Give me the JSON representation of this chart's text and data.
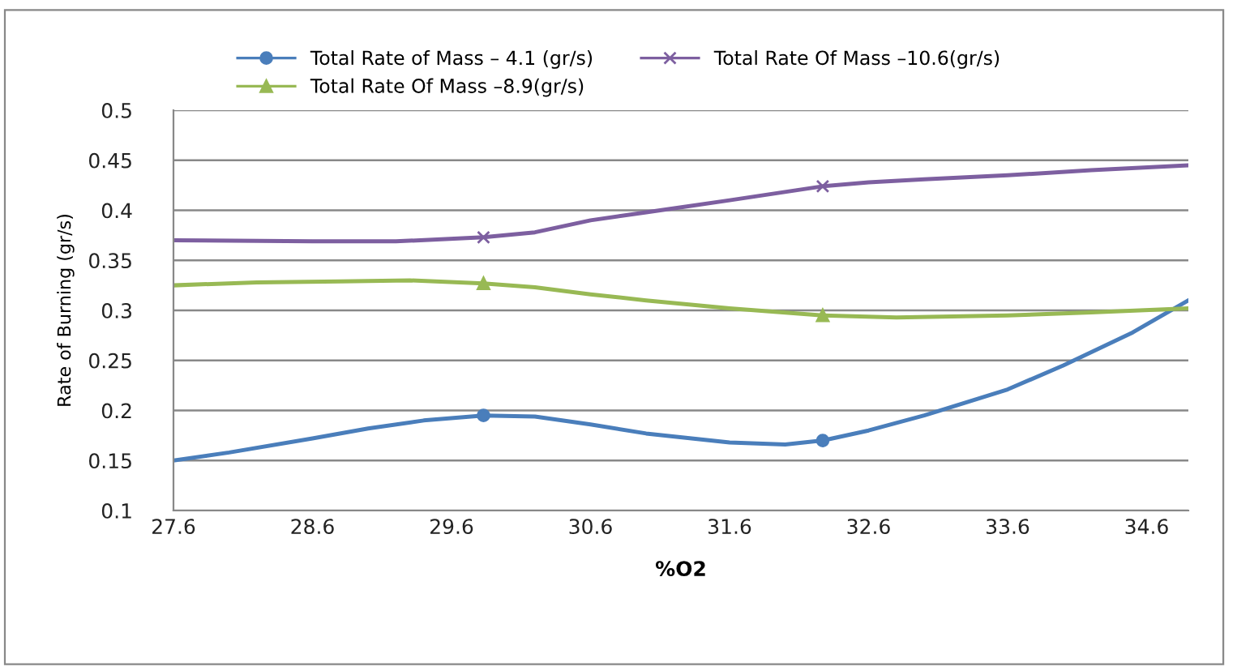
{
  "chart_data": {
    "type": "line",
    "xlabel": "%O2",
    "ylabel": "Rate of Burning (gr/s)",
    "xlim": [
      27.6,
      34.9
    ],
    "xticks": [
      27.6,
      28.6,
      29.6,
      30.6,
      31.6,
      32.6,
      33.6,
      34.6
    ],
    "ylim": [
      0.1,
      0.5
    ],
    "yticks": [
      0.1,
      0.15,
      0.2,
      0.25,
      0.3,
      0.35,
      0.4,
      0.45,
      0.5
    ],
    "grid": "y",
    "legend": "top",
    "line_style": "solid",
    "series": [
      {
        "name": "Total Rate of Mass – 4.1 (gr/s)",
        "color": "#4a7ebb",
        "x": [
          27.6,
          28.0,
          28.6,
          29.0,
          29.4,
          29.83,
          30.2,
          30.6,
          31.0,
          31.6,
          32.0,
          32.27,
          32.6,
          33.0,
          33.6,
          34.0,
          34.5,
          34.9
        ],
        "values": [
          0.15,
          0.158,
          0.172,
          0.182,
          0.19,
          0.195,
          0.194,
          0.186,
          0.177,
          0.168,
          0.166,
          0.17,
          0.18,
          0.195,
          0.221,
          0.245,
          0.278,
          0.31
        ]
      },
      {
        "name": "Total Rate Of Mass –10.6(gr/s)",
        "color": "#7d5fa0",
        "x": [
          27.6,
          28.6,
          29.2,
          29.83,
          30.2,
          30.6,
          31.0,
          31.6,
          32.27,
          32.6,
          33.0,
          33.6,
          34.2,
          34.9
        ],
        "values": [
          0.37,
          0.369,
          0.369,
          0.373,
          0.378,
          0.39,
          0.398,
          0.41,
          0.424,
          0.428,
          0.431,
          0.435,
          0.44,
          0.445
        ]
      },
      {
        "name": "Total Rate Of Mass –8.9(gr/s)",
        "color": "#98b954",
        "x": [
          27.6,
          28.2,
          28.8,
          29.3,
          29.83,
          30.2,
          30.6,
          31.0,
          31.6,
          32.27,
          32.8,
          33.6,
          34.2,
          34.9
        ],
        "values": [
          0.325,
          0.328,
          0.329,
          0.33,
          0.327,
          0.323,
          0.316,
          0.31,
          0.302,
          0.295,
          0.293,
          0.295,
          0.298,
          0.302
        ]
      },
      {
        "type": "scatter",
        "color": "#4a7ebb",
        "marker": "circle",
        "x": [
          29.83,
          32.27
        ],
        "values": [
          0.195,
          0.17
        ]
      },
      {
        "type": "scatter",
        "color": "#7d5fa0",
        "marker": "cross",
        "x": [
          29.83,
          32.27
        ],
        "values": [
          0.373,
          0.424
        ]
      },
      {
        "type": "scatter",
        "color": "#98b954",
        "marker": "triangle",
        "x": [
          29.83,
          32.27
        ],
        "values": [
          0.327,
          0.295
        ]
      }
    ]
  }
}
